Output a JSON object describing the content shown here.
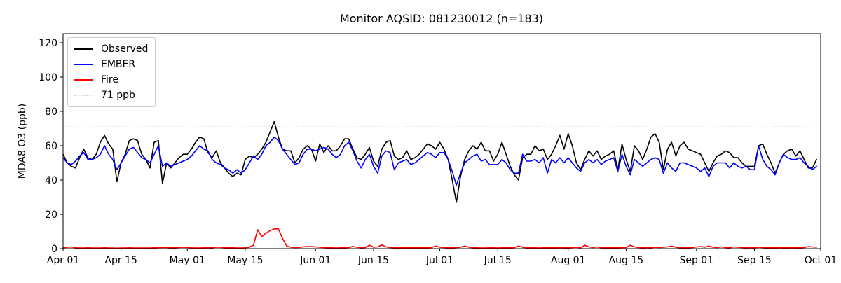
{
  "chart_data": {
    "type": "line",
    "title": "Monitor AQSID: 081230012 (n=183)",
    "ylabel": "MDA8 O3 (ppb)",
    "xlabel": "",
    "x_unit": "days since Apr 01",
    "x_range": [
      0,
      183
    ],
    "y_range": [
      0,
      125.3
    ],
    "y_ticks": [
      0,
      20,
      40,
      60,
      80,
      100,
      120
    ],
    "x_ticks": [
      {
        "day": 0,
        "label": "Apr 01"
      },
      {
        "day": 14,
        "label": "Apr 15"
      },
      {
        "day": 30,
        "label": "May 01"
      },
      {
        "day": 44,
        "label": "May 15"
      },
      {
        "day": 61,
        "label": "Jun 01"
      },
      {
        "day": 75,
        "label": "Jun 15"
      },
      {
        "day": 91,
        "label": "Jul 01"
      },
      {
        "day": 105,
        "label": "Jul 15"
      },
      {
        "day": 122,
        "label": "Aug 01"
      },
      {
        "day": 136,
        "label": "Aug 15"
      },
      {
        "day": 153,
        "label": "Sep 01"
      },
      {
        "day": 167,
        "label": "Sep 15"
      },
      {
        "day": 183,
        "label": "Oct 01"
      }
    ],
    "grid": false,
    "legend_position": "upper left",
    "threshold": {
      "label": "71 ppb",
      "value": 71,
      "color": "#d3d3d3",
      "style": "dotted"
    },
    "series": [
      {
        "name": "Observed",
        "color": "#000000",
        "values": [
          55,
          50,
          48,
          47,
          53,
          58,
          53,
          52,
          55,
          62,
          66,
          61,
          58,
          39,
          50,
          55,
          63,
          64,
          63,
          55,
          52,
          47,
          62,
          63,
          38,
          50,
          47,
          50,
          53,
          55,
          55,
          58,
          62,
          65,
          64,
          56,
          53,
          57,
          50,
          47,
          44,
          42,
          44,
          43,
          52,
          54,
          53,
          55,
          58,
          62,
          68,
          74,
          65,
          58,
          57,
          57,
          50,
          53,
          58,
          60,
          58,
          51,
          61,
          56,
          60,
          57,
          57,
          60,
          64,
          64,
          58,
          53,
          52,
          55,
          59,
          51,
          48,
          58,
          62,
          63,
          54,
          52,
          53,
          57,
          52,
          53,
          55,
          58,
          61,
          60,
          58,
          62,
          58,
          52,
          40,
          27,
          42,
          52,
          57,
          60,
          58,
          62,
          57,
          57,
          51,
          55,
          62,
          55,
          48,
          43,
          40,
          53,
          55,
          55,
          60,
          57,
          58,
          52,
          55,
          60,
          66,
          58,
          67,
          60,
          50,
          46,
          52,
          57,
          54,
          57,
          52,
          54,
          55,
          57,
          46,
          61,
          52,
          45,
          60,
          57,
          52,
          58,
          65,
          67,
          62,
          46,
          58,
          62,
          54,
          60,
          62,
          58,
          57,
          56,
          55,
          50,
          45,
          50,
          54,
          55,
          57,
          56,
          53,
          53,
          50,
          48,
          48,
          48,
          60,
          61,
          55,
          50,
          44,
          50,
          55,
          57,
          58,
          54,
          57,
          52,
          47,
          47,
          52
        ]
      },
      {
        "name": "EMBER",
        "color": "#0000ff",
        "values": [
          53,
          50,
          49,
          51,
          54,
          56,
          52,
          52,
          53,
          55,
          60,
          55,
          52,
          46,
          50,
          54,
          58,
          59,
          56,
          53,
          52,
          50,
          55,
          60,
          48,
          50,
          48,
          49,
          50,
          51,
          52,
          54,
          57,
          60,
          58,
          57,
          52,
          50,
          49,
          47,
          46,
          44,
          46,
          44,
          46,
          50,
          54,
          52,
          55,
          60,
          62,
          65,
          63,
          58,
          55,
          52,
          49,
          50,
          55,
          58,
          58,
          57,
          58,
          59,
          58,
          55,
          53,
          55,
          60,
          62,
          57,
          51,
          47,
          52,
          55,
          48,
          44,
          54,
          57,
          56,
          46,
          50,
          51,
          52,
          49,
          50,
          52,
          54,
          56,
          55,
          53,
          56,
          56,
          52,
          45,
          37,
          44,
          50,
          52,
          54,
          55,
          51,
          52,
          49,
          49,
          49,
          52,
          50,
          46,
          44,
          44,
          55,
          51,
          51,
          52,
          50,
          53,
          44,
          52,
          50,
          53,
          50,
          53,
          50,
          47,
          45,
          50,
          52,
          50,
          52,
          49,
          51,
          52,
          53,
          45,
          55,
          48,
          43,
          52,
          50,
          48,
          50,
          52,
          53,
          52,
          44,
          50,
          47,
          45,
          50,
          50,
          49,
          48,
          47,
          45,
          47,
          42,
          48,
          50,
          50,
          50,
          47,
          50,
          48,
          47,
          48,
          46,
          46,
          60,
          52,
          48,
          46,
          43,
          50,
          55,
          53,
          52,
          52,
          53,
          50,
          48,
          46,
          48
        ]
      },
      {
        "name": "Fire",
        "color": "#ff0000",
        "values": [
          0.5,
          0.8,
          1.0,
          0.5,
          0.4,
          0.4,
          0.5,
          0.4,
          0.4,
          0.4,
          0.5,
          0.4,
          0.4,
          0.3,
          0.4,
          0.4,
          0.5,
          0.4,
          0.4,
          0.4,
          0.4,
          0.4,
          0.5,
          0.6,
          0.7,
          0.7,
          0.5,
          0.5,
          0.7,
          0.8,
          0.7,
          0.5,
          0.4,
          0.4,
          0.5,
          0.6,
          0.5,
          0.9,
          0.8,
          0.5,
          0.5,
          0.5,
          0.4,
          0.4,
          0.5,
          0.8,
          2.0,
          11.0,
          7.0,
          9.0,
          10.5,
          11.5,
          11.5,
          6.0,
          1.5,
          0.8,
          0.6,
          0.7,
          1.0,
          1.2,
          1.2,
          1.0,
          0.8,
          0.6,
          0.5,
          0.5,
          0.4,
          0.5,
          0.5,
          0.6,
          1.3,
          0.8,
          0.5,
          0.6,
          2.0,
          0.8,
          1.0,
          2.2,
          1.0,
          0.6,
          0.5,
          0.5,
          0.5,
          0.5,
          0.5,
          0.5,
          0.5,
          0.5,
          0.5,
          0.6,
          1.5,
          0.8,
          0.6,
          0.5,
          0.5,
          0.6,
          0.8,
          1.5,
          0.8,
          0.5,
          0.5,
          0.4,
          0.4,
          0.5,
          0.5,
          0.4,
          0.5,
          0.5,
          0.5,
          0.6,
          1.5,
          0.8,
          0.5,
          0.5,
          0.5,
          0.4,
          0.5,
          0.5,
          0.5,
          0.5,
          0.6,
          0.5,
          0.5,
          0.6,
          0.8,
          0.5,
          2.0,
          1.0,
          0.6,
          1.0,
          0.5,
          0.5,
          0.5,
          0.5,
          0.5,
          0.6,
          0.6,
          2.0,
          1.0,
          0.6,
          0.5,
          0.6,
          0.5,
          0.8,
          0.6,
          0.8,
          1.0,
          1.5,
          0.8,
          0.5,
          0.5,
          0.5,
          0.6,
          1.0,
          1.2,
          0.8,
          1.5,
          0.8,
          0.6,
          1.0,
          0.6,
          0.5,
          1.0,
          0.8,
          0.6,
          0.5,
          0.6,
          0.5,
          0.8,
          0.6,
          0.5,
          0.5,
          0.5,
          0.6,
          0.5,
          0.5,
          0.6,
          0.5,
          0.5,
          0.6,
          1.2,
          1.0,
          0.8
        ]
      }
    ]
  }
}
